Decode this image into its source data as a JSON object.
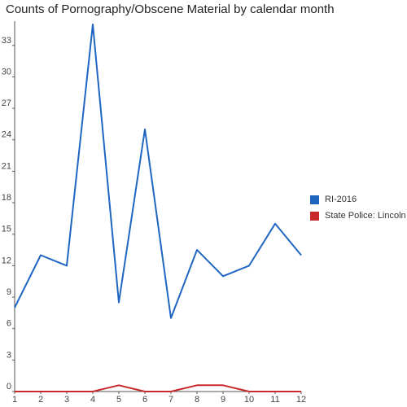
{
  "chart_data": {
    "type": "line",
    "title": "Counts of Pornography/Obscene Material by calendar month",
    "xlabel": "",
    "ylabel": "",
    "x": [
      1,
      2,
      3,
      4,
      5,
      6,
      7,
      8,
      9,
      10,
      11,
      12
    ],
    "xlim": [
      1,
      12
    ],
    "ylim": [
      0,
      35
    ],
    "yticks": [
      0,
      3,
      6,
      9,
      12,
      15,
      18,
      21,
      24,
      27,
      30,
      33
    ],
    "grid": false,
    "legend_position": "right",
    "series": [
      {
        "name": "RI-2016",
        "color": "#1f66c1",
        "values": [
          8,
          13,
          12,
          35,
          8.5,
          25,
          7,
          13.5,
          11,
          12,
          16,
          13
        ]
      },
      {
        "name": "State Police: Lincoln",
        "color": "#c8292b",
        "values": [
          0,
          0,
          0,
          0,
          0.6,
          0,
          0,
          0.6,
          0.6,
          0,
          0,
          0
        ]
      }
    ]
  }
}
